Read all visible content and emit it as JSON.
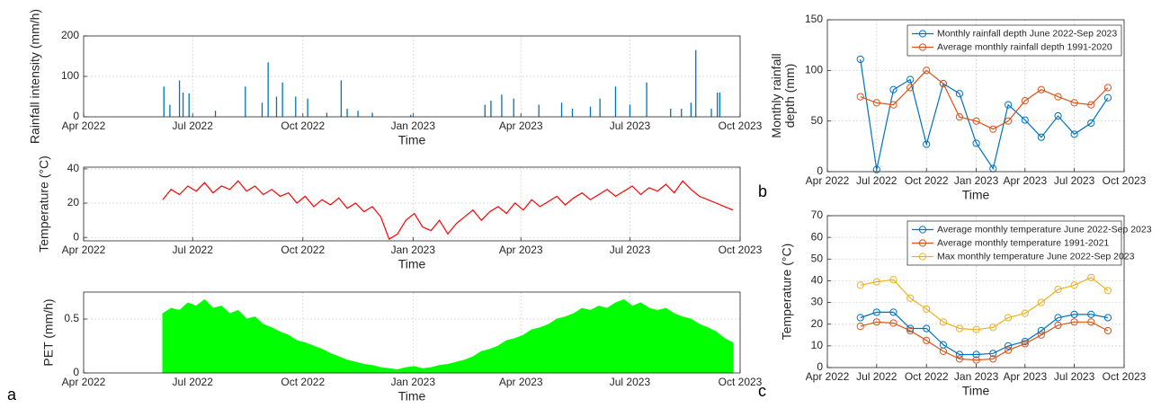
{
  "panel_labels": [
    "a",
    "b",
    "c"
  ],
  "chart_data": [
    {
      "type": "bar",
      "x_label": "Time",
      "y_label": [
        "Rainfall intensity (mm/h)"
      ],
      "color": "#0072BD",
      "grid": true,
      "xlim": [
        "2022-04",
        "2023-10"
      ],
      "xticks": [
        {
          "value": "2022-04",
          "label": "Apr 2022"
        },
        {
          "value": "2022-07",
          "label": "Jul 2022"
        },
        {
          "value": "2022-10",
          "label": "Oct 2022"
        },
        {
          "value": "2023-01",
          "label": "Jan 2023"
        },
        {
          "value": "2023-04",
          "label": "Apr 2023"
        },
        {
          "value": "2023-07",
          "label": "Jul 2023"
        },
        {
          "value": "2023-10",
          "label": "Oct 2023"
        }
      ],
      "ylim": [
        0,
        200
      ],
      "yticks": [
        0,
        100,
        200
      ],
      "x": [
        "2022-06-07",
        "2022-06-12",
        "2022-06-20",
        "2022-06-23",
        "2022-06-28",
        "2022-07-20",
        "2022-08-14",
        "2022-08-28",
        "2022-09-02",
        "2022-09-09",
        "2022-09-14",
        "2022-09-25",
        "2022-10-05",
        "2022-10-21",
        "2022-11-02",
        "2022-11-07",
        "2022-11-16",
        "2022-11-28",
        "2022-12-30",
        "2023-03-02",
        "2023-03-07",
        "2023-03-16",
        "2023-03-26",
        "2023-04-16",
        "2023-05-05",
        "2023-05-14",
        "2023-05-29",
        "2023-06-06",
        "2023-06-19",
        "2023-07-01",
        "2023-07-15",
        "2023-08-04",
        "2023-08-13",
        "2023-08-21",
        "2023-08-25",
        "2023-09-07",
        "2023-09-12",
        "2023-09-14"
      ],
      "values": [
        75,
        30,
        90,
        60,
        58,
        15,
        75,
        35,
        135,
        50,
        85,
        50,
        45,
        10,
        90,
        20,
        15,
        10,
        5,
        30,
        40,
        55,
        45,
        30,
        35,
        20,
        25,
        45,
        75,
        30,
        85,
        20,
        20,
        35,
        165,
        20,
        60,
        60
      ]
    },
    {
      "type": "line",
      "x_label": "Time",
      "y_label": [
        "Temperature (°C)"
      ],
      "color": "#FF0000",
      "grid": true,
      "xlim": [
        "2022-04",
        "2023-10"
      ],
      "xticks": [
        {
          "value": "2022-04",
          "label": "Apr 2022"
        },
        {
          "value": "2022-07",
          "label": "Jul 2022"
        },
        {
          "value": "2022-10",
          "label": "Oct 2022"
        },
        {
          "value": "2023-01",
          "label": "Jan 2023"
        },
        {
          "value": "2023-04",
          "label": "Apr 2023"
        },
        {
          "value": "2023-07",
          "label": "Jul 2023"
        },
        {
          "value": "2023-10",
          "label": "Oct 2023"
        }
      ],
      "ylim": [
        -2,
        41
      ],
      "yticks": [
        0,
        20,
        40
      ],
      "x": [
        "2022-06-06",
        "2022-06-13",
        "2022-06-20",
        "2022-06-27",
        "2022-07-04",
        "2022-07-11",
        "2022-07-18",
        "2022-07-25",
        "2022-08-01",
        "2022-08-08",
        "2022-08-15",
        "2022-08-22",
        "2022-08-29",
        "2022-09-05",
        "2022-09-12",
        "2022-09-19",
        "2022-09-26",
        "2022-10-03",
        "2022-10-10",
        "2022-10-17",
        "2022-10-24",
        "2022-10-31",
        "2022-11-07",
        "2022-11-14",
        "2022-11-21",
        "2022-11-28",
        "2022-12-05",
        "2022-12-12",
        "2022-12-19",
        "2022-12-26",
        "2023-01-02",
        "2023-01-09",
        "2023-01-16",
        "2023-01-23",
        "2023-01-30",
        "2023-02-06",
        "2023-02-13",
        "2023-02-20",
        "2023-02-27",
        "2023-03-06",
        "2023-03-13",
        "2023-03-20",
        "2023-03-27",
        "2023-04-03",
        "2023-04-10",
        "2023-04-17",
        "2023-04-24",
        "2023-05-01",
        "2023-05-08",
        "2023-05-15",
        "2023-05-22",
        "2023-05-29",
        "2023-06-05",
        "2023-06-12",
        "2023-06-19",
        "2023-06-26",
        "2023-07-03",
        "2023-07-10",
        "2023-07-17",
        "2023-07-24",
        "2023-07-31",
        "2023-08-07",
        "2023-08-14",
        "2023-08-21",
        "2023-08-28",
        "2023-09-04",
        "2023-09-11",
        "2023-09-18",
        "2023-09-25"
      ],
      "values": [
        22,
        28,
        25,
        30,
        27,
        32,
        26,
        30,
        28,
        33,
        27,
        30,
        25,
        28,
        24,
        26,
        20,
        24,
        18,
        22,
        19,
        23,
        17,
        20,
        15,
        18,
        12,
        -1,
        2,
        10,
        14,
        6,
        4,
        10,
        2,
        8,
        12,
        16,
        10,
        15,
        18,
        14,
        20,
        16,
        22,
        18,
        21,
        24,
        19,
        23,
        26,
        22,
        25,
        28,
        24,
        27,
        30,
        25,
        29,
        27,
        31,
        26,
        33,
        28,
        24,
        22,
        20,
        18,
        16
      ]
    },
    {
      "type": "area",
      "x_label": "Time",
      "y_label": [
        "PET (mm/h)"
      ],
      "color": "#00FF00",
      "grid": true,
      "xlim": [
        "2022-04",
        "2023-10"
      ],
      "xticks": [
        {
          "value": "2022-04",
          "label": "Apr 2022"
        },
        {
          "value": "2022-07",
          "label": "Jul 2022"
        },
        {
          "value": "2022-10",
          "label": "Oct 2022"
        },
        {
          "value": "2023-01",
          "label": "Jan 2023"
        },
        {
          "value": "2023-04",
          "label": "Apr 2023"
        },
        {
          "value": "2023-07",
          "label": "Jul 2023"
        },
        {
          "value": "2023-10",
          "label": "Oct 2023"
        }
      ],
      "ylim": [
        0,
        0.75
      ],
      "yticks": [
        0,
        0.5
      ],
      "x": [
        "2022-06-06",
        "2022-06-13",
        "2022-06-20",
        "2022-06-27",
        "2022-07-04",
        "2022-07-11",
        "2022-07-18",
        "2022-07-25",
        "2022-08-01",
        "2022-08-08",
        "2022-08-15",
        "2022-08-22",
        "2022-08-29",
        "2022-09-05",
        "2022-09-12",
        "2022-09-19",
        "2022-09-26",
        "2022-10-03",
        "2022-10-10",
        "2022-10-17",
        "2022-10-24",
        "2022-10-31",
        "2022-11-07",
        "2022-11-14",
        "2022-11-21",
        "2022-11-28",
        "2022-12-05",
        "2022-12-12",
        "2022-12-19",
        "2022-12-26",
        "2023-01-02",
        "2023-01-09",
        "2023-01-16",
        "2023-01-23",
        "2023-01-30",
        "2023-02-06",
        "2023-02-13",
        "2023-02-20",
        "2023-02-27",
        "2023-03-06",
        "2023-03-13",
        "2023-03-20",
        "2023-03-27",
        "2023-04-03",
        "2023-04-10",
        "2023-04-17",
        "2023-04-24",
        "2023-05-01",
        "2023-05-08",
        "2023-05-15",
        "2023-05-22",
        "2023-05-29",
        "2023-06-05",
        "2023-06-12",
        "2023-06-19",
        "2023-06-26",
        "2023-07-03",
        "2023-07-10",
        "2023-07-17",
        "2023-07-24",
        "2023-07-31",
        "2023-08-07",
        "2023-08-14",
        "2023-08-21",
        "2023-08-28",
        "2023-09-04",
        "2023-09-11",
        "2023-09-18",
        "2023-09-25"
      ],
      "values": [
        0.55,
        0.6,
        0.58,
        0.65,
        0.62,
        0.68,
        0.6,
        0.62,
        0.55,
        0.58,
        0.5,
        0.52,
        0.45,
        0.42,
        0.38,
        0.35,
        0.3,
        0.28,
        0.25,
        0.22,
        0.18,
        0.15,
        0.12,
        0.1,
        0.08,
        0.07,
        0.05,
        0.04,
        0.03,
        0.05,
        0.06,
        0.04,
        0.05,
        0.07,
        0.08,
        0.1,
        0.12,
        0.15,
        0.2,
        0.22,
        0.25,
        0.3,
        0.32,
        0.35,
        0.4,
        0.42,
        0.45,
        0.5,
        0.52,
        0.55,
        0.6,
        0.58,
        0.62,
        0.6,
        0.65,
        0.68,
        0.62,
        0.65,
        0.6,
        0.58,
        0.6,
        0.55,
        0.52,
        0.5,
        0.45,
        0.42,
        0.38,
        0.32,
        0.28
      ]
    },
    {
      "type": "line",
      "x_label": "Time",
      "y_label": [
        "Monthly rainfall",
        "depth (mm)"
      ],
      "grid": true,
      "marker": "o",
      "legend": "upper right",
      "xlim": [
        "2022-04",
        "2023-10"
      ],
      "xticks": [
        {
          "value": "2022-04",
          "label": "Apr 2022"
        },
        {
          "value": "2022-07",
          "label": "Jul 2022"
        },
        {
          "value": "2022-10",
          "label": "Oct 2022"
        },
        {
          "value": "2023-01",
          "label": "Jan 2023"
        },
        {
          "value": "2023-04",
          "label": "Apr 2023"
        },
        {
          "value": "2023-07",
          "label": "Jul 2023"
        },
        {
          "value": "2023-10",
          "label": "Oct 2023"
        }
      ],
      "ylim": [
        0,
        150
      ],
      "yticks": [
        0,
        50,
        100,
        150
      ],
      "x": [
        "2022-06",
        "2022-07",
        "2022-08",
        "2022-09",
        "2022-10",
        "2022-11",
        "2022-12",
        "2023-01",
        "2023-02",
        "2023-03",
        "2023-04",
        "2023-05",
        "2023-06",
        "2023-07",
        "2023-08",
        "2023-09"
      ],
      "series": [
        {
          "name": "Monthly rainfall depth June 2022-Sep 2023",
          "color": "#0072BD",
          "values": [
            111,
            2,
            81,
            91,
            27,
            87,
            77,
            28,
            3,
            66,
            51,
            34,
            55,
            37,
            48,
            73
          ]
        },
        {
          "name": "Average monthly rainfall depth 1991-2020",
          "color": "#D95319",
          "values": [
            74,
            68,
            66,
            83,
            100,
            87,
            54,
            50,
            42,
            50,
            70,
            81,
            74,
            68,
            66,
            83
          ]
        }
      ]
    },
    {
      "type": "line",
      "x_label": "Time",
      "y_label": [
        "Temperature (°C)"
      ],
      "grid": true,
      "marker": "o",
      "legend": "upper right",
      "xlim": [
        "2022-04",
        "2023-10"
      ],
      "xticks": [
        {
          "value": "2022-04",
          "label": "Apr 2022"
        },
        {
          "value": "2022-07",
          "label": "Jul 2022"
        },
        {
          "value": "2022-10",
          "label": "Oct 2022"
        },
        {
          "value": "2023-01",
          "label": "Jan 2023"
        },
        {
          "value": "2023-04",
          "label": "Apr 2023"
        },
        {
          "value": "2023-07",
          "label": "Jul 2023"
        },
        {
          "value": "2023-10",
          "label": "Oct 2023"
        }
      ],
      "ylim": [
        0,
        70
      ],
      "yticks": [
        0,
        10,
        20,
        30,
        40,
        50,
        60,
        70
      ],
      "x": [
        "2022-06",
        "2022-07",
        "2022-08",
        "2022-09",
        "2022-10",
        "2022-11",
        "2022-12",
        "2023-01",
        "2023-02",
        "2023-03",
        "2023-04",
        "2023-05",
        "2023-06",
        "2023-07",
        "2023-08",
        "2023-09"
      ],
      "series": [
        {
          "name": "Average monthly temperature June 2022-Sep 2023",
          "color": "#0072BD",
          "values": [
            23,
            25.5,
            25.5,
            18,
            18,
            10.5,
            6,
            6,
            6.5,
            10,
            12,
            17,
            23,
            24.5,
            24.5,
            23
          ]
        },
        {
          "name": "Average monthly temperature 1991-2021",
          "color": "#D95319",
          "values": [
            19,
            21,
            20.5,
            17,
            12.5,
            7.5,
            4,
            3.5,
            4,
            8,
            11,
            15,
            19.5,
            21,
            21,
            17
          ]
        },
        {
          "name": "Max monthly temperature June 2022-Sep 2023",
          "color": "#EDB120",
          "values": [
            38,
            39.5,
            40.5,
            32,
            27,
            21,
            18,
            17.5,
            18.5,
            23,
            25,
            30,
            36,
            38,
            41.5,
            35.5
          ]
        }
      ]
    }
  ]
}
